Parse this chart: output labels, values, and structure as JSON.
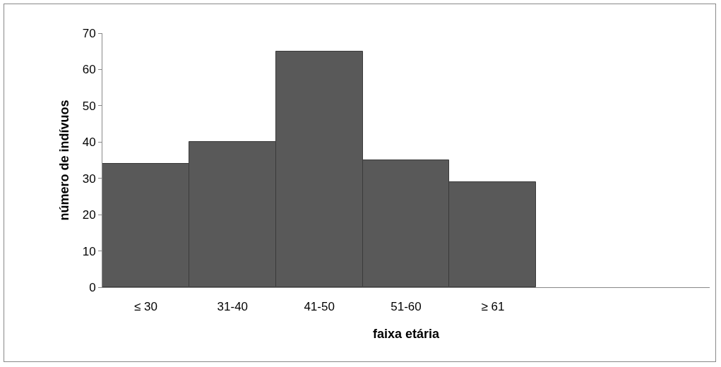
{
  "chart_data": {
    "type": "bar",
    "xlabel": "faixa etária",
    "ylabel": "número de indívuos",
    "categories": [
      "≤ 30",
      "31-40",
      "41-50",
      "51-60",
      "≥ 61",
      null,
      null
    ],
    "values": [
      34,
      40,
      65,
      35,
      29,
      null,
      null
    ],
    "color": "#595959",
    "ylim": [
      0,
      70
    ],
    "yticks": [
      0,
      10,
      20,
      30,
      40,
      50,
      60,
      70
    ],
    "grid": false,
    "legend": false
  }
}
